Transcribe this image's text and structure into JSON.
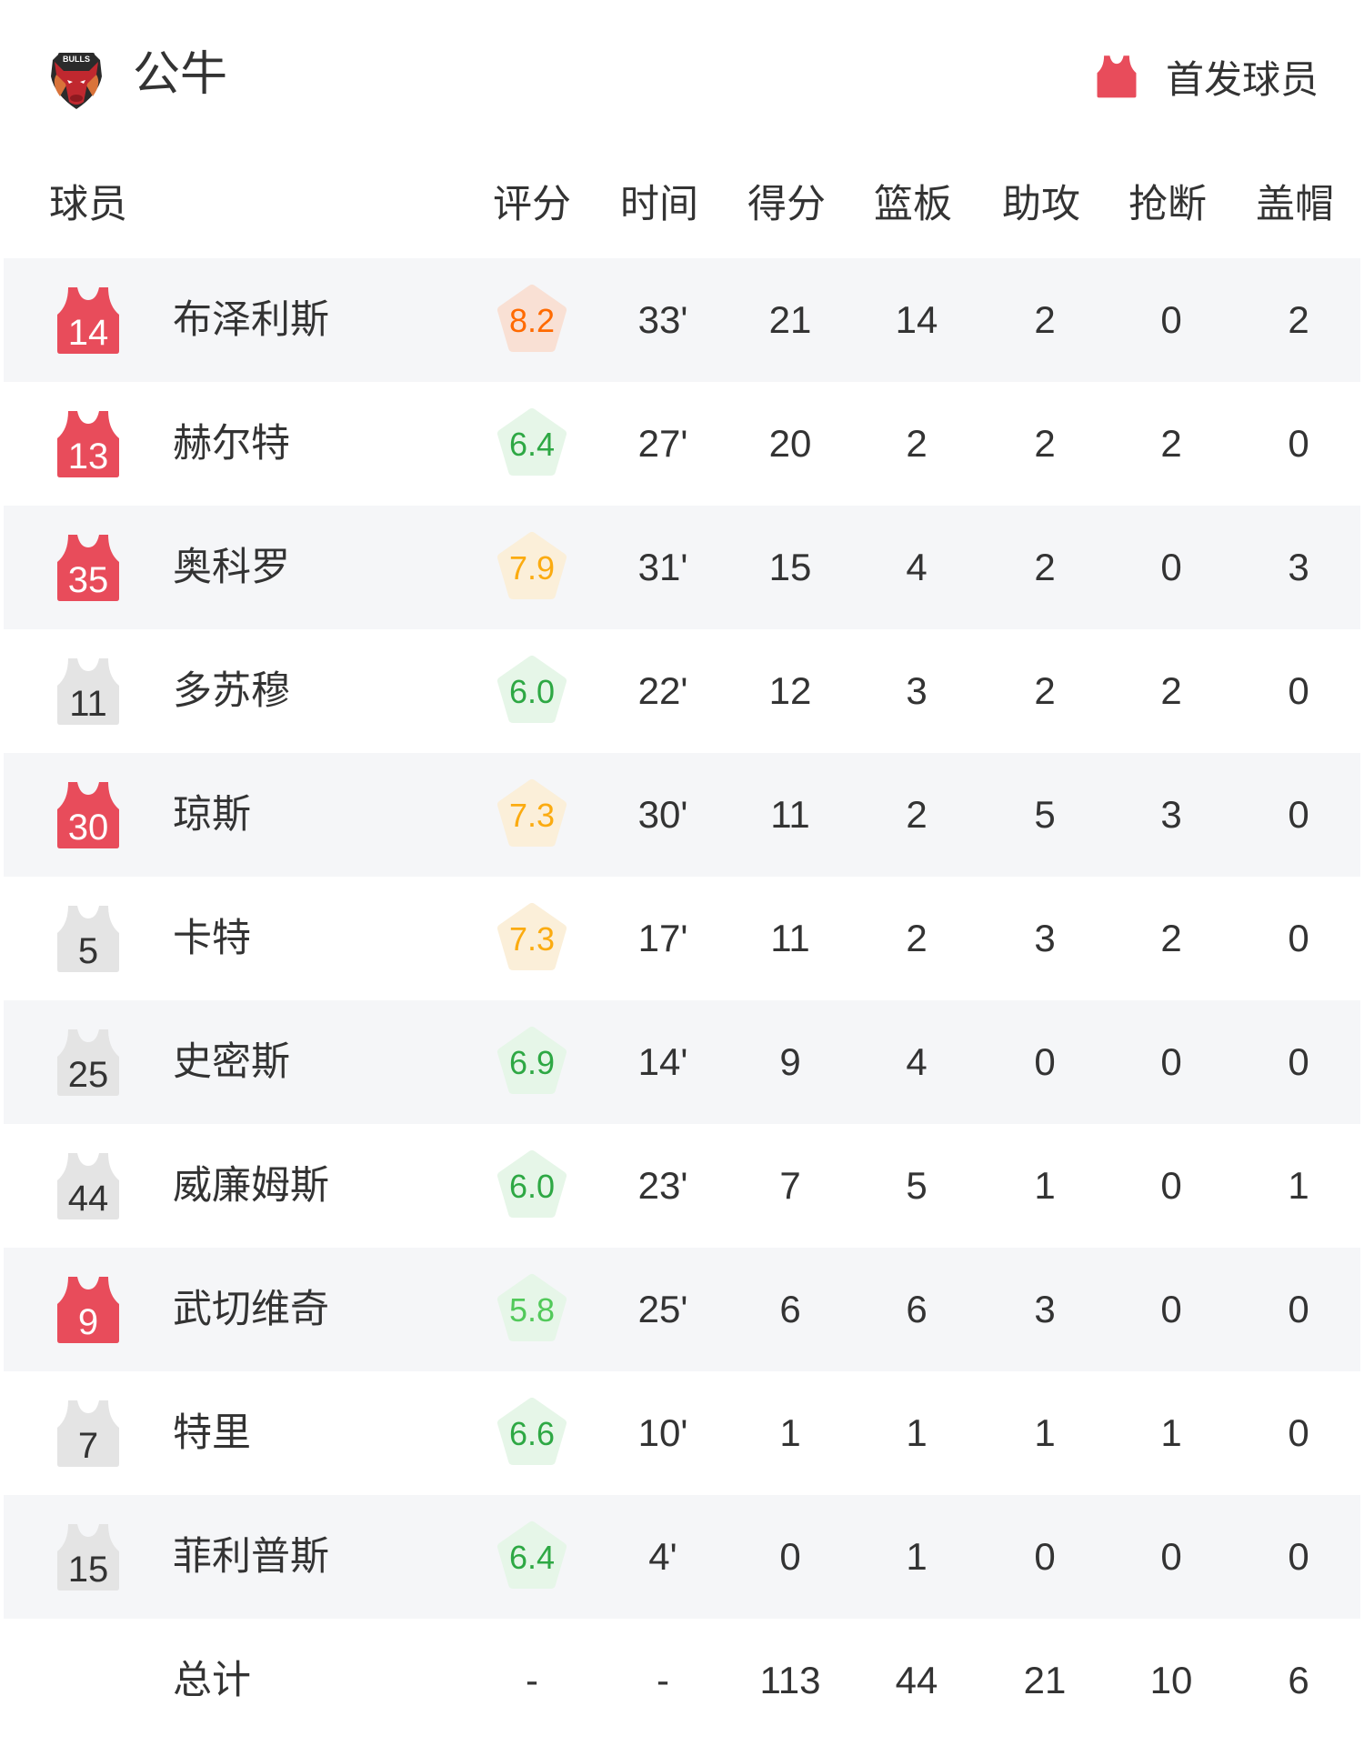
{
  "header": {
    "team_name": "公牛",
    "logo_text": "BULLS",
    "legend_label": "首发球员",
    "legend_icon": "jersey-icon"
  },
  "columns": [
    "球员",
    "评分",
    "时间",
    "得分",
    "篮板",
    "助攻",
    "抢断",
    "盖帽"
  ],
  "colors": {
    "starter_jersey": "#e84c5b",
    "bench_jersey": "#e4e4e4",
    "rating_orange": "#ff6a00",
    "rating_orange_bg": "#f9e0d4",
    "rating_amber": "#fbab10",
    "rating_amber_bg": "#fbefd9",
    "rating_green": "#2ea844",
    "rating_green_bg": "#e6f6e8",
    "rating_lightgreen": "#52c95a",
    "row_alt_bg": "#f5f6f8"
  },
  "players": [
    {
      "number": "14",
      "starter": true,
      "name": "布泽利斯",
      "rating": "8.2",
      "tier": "orange",
      "min": "33'",
      "pts": "21",
      "reb": "14",
      "ast": "2",
      "stl": "0",
      "blk": "2"
    },
    {
      "number": "13",
      "starter": true,
      "name": "赫尔特",
      "rating": "6.4",
      "tier": "green",
      "min": "27'",
      "pts": "20",
      "reb": "2",
      "ast": "2",
      "stl": "2",
      "blk": "0"
    },
    {
      "number": "35",
      "starter": true,
      "name": "奥科罗",
      "rating": "7.9",
      "tier": "amber",
      "min": "31'",
      "pts": "15",
      "reb": "4",
      "ast": "2",
      "stl": "0",
      "blk": "3"
    },
    {
      "number": "11",
      "starter": false,
      "name": "多苏穆",
      "rating": "6.0",
      "tier": "green",
      "min": "22'",
      "pts": "12",
      "reb": "3",
      "ast": "2",
      "stl": "2",
      "blk": "0"
    },
    {
      "number": "30",
      "starter": true,
      "name": "琼斯",
      "rating": "7.3",
      "tier": "amber",
      "min": "30'",
      "pts": "11",
      "reb": "2",
      "ast": "5",
      "stl": "3",
      "blk": "0"
    },
    {
      "number": "5",
      "starter": false,
      "name": "卡特",
      "rating": "7.3",
      "tier": "amber",
      "min": "17'",
      "pts": "11",
      "reb": "2",
      "ast": "3",
      "stl": "2",
      "blk": "0"
    },
    {
      "number": "25",
      "starter": false,
      "name": "史密斯",
      "rating": "6.9",
      "tier": "green",
      "min": "14'",
      "pts": "9",
      "reb": "4",
      "ast": "0",
      "stl": "0",
      "blk": "0"
    },
    {
      "number": "44",
      "starter": false,
      "name": "威廉姆斯",
      "rating": "6.0",
      "tier": "green",
      "min": "23'",
      "pts": "7",
      "reb": "5",
      "ast": "1",
      "stl": "0",
      "blk": "1"
    },
    {
      "number": "9",
      "starter": true,
      "name": "武切维奇",
      "rating": "5.8",
      "tier": "lightgreen",
      "min": "25'",
      "pts": "6",
      "reb": "6",
      "ast": "3",
      "stl": "0",
      "blk": "0"
    },
    {
      "number": "7",
      "starter": false,
      "name": "特里",
      "rating": "6.6",
      "tier": "green",
      "min": "10'",
      "pts": "1",
      "reb": "1",
      "ast": "1",
      "stl": "1",
      "blk": "0"
    },
    {
      "number": "15",
      "starter": false,
      "name": "菲利普斯",
      "rating": "6.4",
      "tier": "green",
      "min": "4'",
      "pts": "0",
      "reb": "1",
      "ast": "0",
      "stl": "0",
      "blk": "0"
    }
  ],
  "totals": {
    "label": "总计",
    "rating": "-",
    "min": "-",
    "pts": "113",
    "reb": "44",
    "ast": "21",
    "stl": "10",
    "blk": "6"
  }
}
